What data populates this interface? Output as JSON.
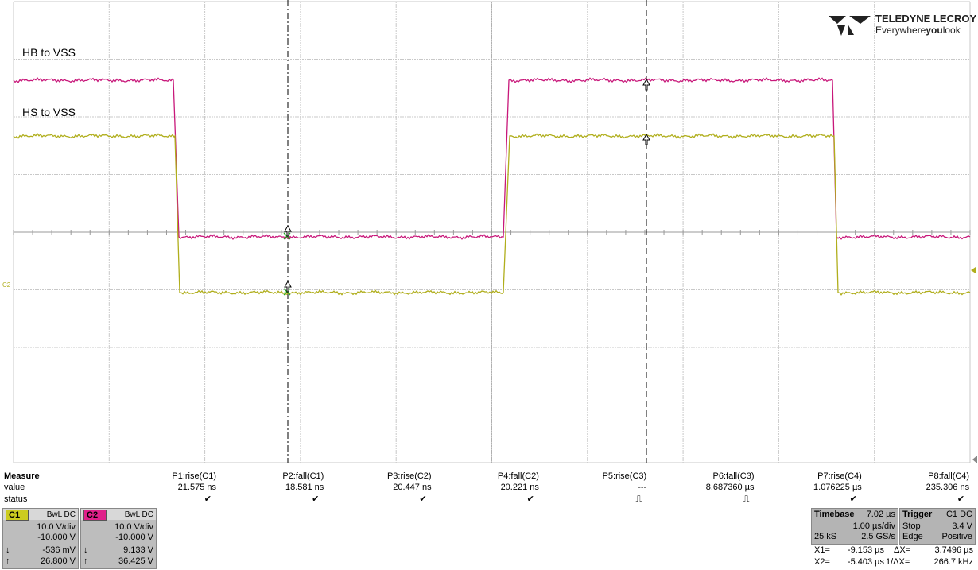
{
  "logo": {
    "brand": "TELEDYNE LECROY",
    "tagline": [
      "Everywhere",
      "you",
      "look"
    ]
  },
  "traces": [
    {
      "label": "HB to VSS"
    },
    {
      "label": "HS to VSS"
    }
  ],
  "channel_marker": "C2",
  "measure": {
    "row_labels": [
      "Measure",
      "value",
      "status"
    ],
    "params": [
      {
        "name": "P1:rise(C1)",
        "value": "21.575 ns",
        "status": "✔"
      },
      {
        "name": "P2:fall(C1)",
        "value": "18.581 ns",
        "status": "✔"
      },
      {
        "name": "P3:rise(C2)",
        "value": "20.447 ns",
        "status": "✔"
      },
      {
        "name": "P4:fall(C2)",
        "value": "20.221 ns",
        "status": "✔"
      },
      {
        "name": "P5:rise(C3)",
        "value": "---",
        "status": "⎍"
      },
      {
        "name": "P6:fall(C3)",
        "value": "8.687360 µs",
        "status": "⎍"
      },
      {
        "name": "P7:rise(C4)",
        "value": "1.076225 µs",
        "status": "✔"
      },
      {
        "name": "P8:fall(C4)",
        "value": "235.306 ns",
        "status": "✔"
      }
    ]
  },
  "channels": [
    {
      "name": "C1",
      "coupling": "BwL DC",
      "scale": "10.0 V/div",
      "offset": "-10.000 V",
      "low_arrow": "↓",
      "low": "-536 mV",
      "high_arrow": "↑",
      "high": "26.800 V"
    },
    {
      "name": "C2",
      "coupling": "BwL DC",
      "scale": "10.0 V/div",
      "offset": "-10.000 V",
      "low_arrow": "↓",
      "low": "9.133 V",
      "high_arrow": "↑",
      "high": "36.425 V"
    }
  ],
  "timebase": {
    "title": "Timebase",
    "delay": "7.02 µs",
    "scale": "1.00 µs/div",
    "samples": "25 kS",
    "rate": "2.5 GS/s"
  },
  "trigger": {
    "title": "Trigger",
    "source": "C1 DC",
    "mode": "Stop",
    "level": "3.4 V",
    "type": "Edge",
    "slope": "Positive"
  },
  "cursors": {
    "x1_label": "X1=",
    "x1": "-9.153 µs",
    "dx_label": "ΔX=",
    "dx": "3.7496 µs",
    "x2_label": "X2=",
    "x2": "-5.403 µs",
    "inv_label": "1/ΔX=",
    "inv": "266.7 kHz"
  }
}
